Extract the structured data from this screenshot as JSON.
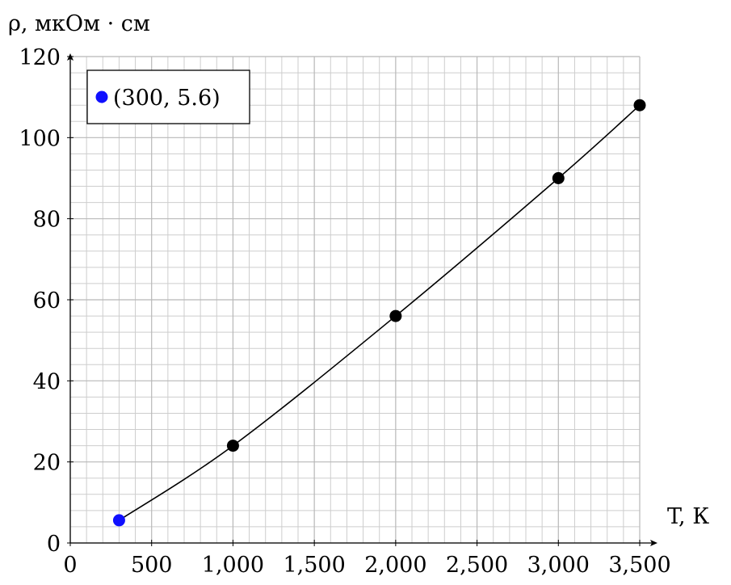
{
  "chart_data": {
    "type": "line",
    "title": "",
    "ylabel": "ρ, мкОм · см",
    "xlabel": "T, К",
    "xlim": [
      0,
      3500
    ],
    "ylim": [
      0,
      120
    ],
    "x_ticks": [
      "0",
      "500",
      "1,000",
      "1,500",
      "2,000",
      "2,500",
      "3,000",
      "3,500"
    ],
    "y_ticks": [
      "0",
      "20",
      "40",
      "60",
      "80",
      "100",
      "120"
    ],
    "grid": true,
    "series": [
      {
        "points": [
          {
            "x": 300,
            "y": 5.6
          },
          {
            "x": 1000,
            "y": 24
          },
          {
            "x": 2000,
            "y": 56
          },
          {
            "x": 3000,
            "y": 90
          },
          {
            "x": 3500,
            "y": 108
          }
        ],
        "line_color": "#000000",
        "marker_color": "#000000"
      }
    ],
    "highlight": {
      "x": 300,
      "y": 5.6,
      "color": "#1010ff",
      "label": "(300, 5.6)"
    },
    "legend_position": "top-left"
  }
}
